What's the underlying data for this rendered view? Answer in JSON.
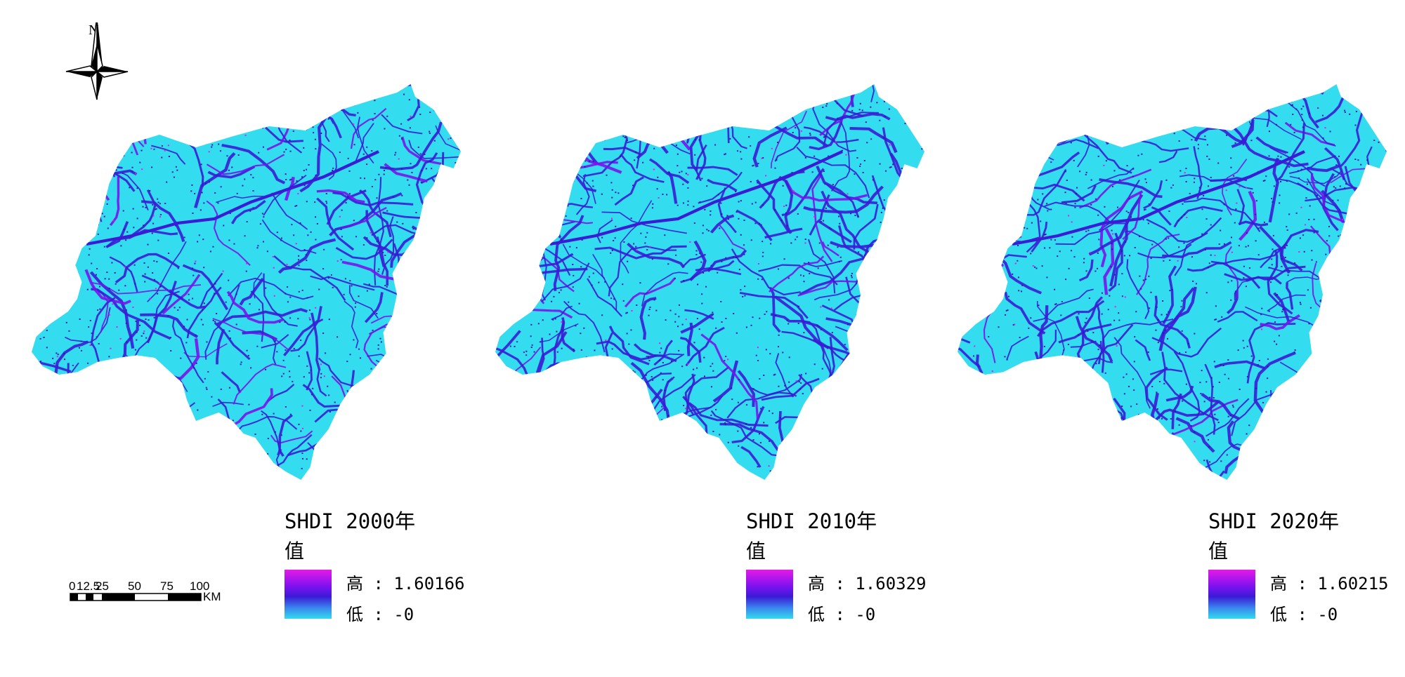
{
  "north_arrow": {
    "label": "N",
    "icon": "north-arrow-icon"
  },
  "scale_bar": {
    "tick_labels": [
      "0",
      "12.5",
      "25",
      "50",
      "75",
      "100"
    ],
    "unit": "KM"
  },
  "maps": [
    {
      "legend": {
        "title": "SHDI 2000年",
        "field": "值",
        "high": "高 : 1.60166",
        "low": "低 : -0"
      }
    },
    {
      "legend": {
        "title": "SHDI 2010年",
        "field": "值",
        "high": "高 : 1.60329",
        "low": "低 : -0"
      }
    },
    {
      "legend": {
        "title": "SHDI 2020年",
        "field": "值",
        "high": "高 : 1.60215",
        "low": "低 : -0"
      }
    }
  ],
  "colors": {
    "low": "#33dcee",
    "mid": "#3a1bd6",
    "high": "#e61ae6"
  }
}
